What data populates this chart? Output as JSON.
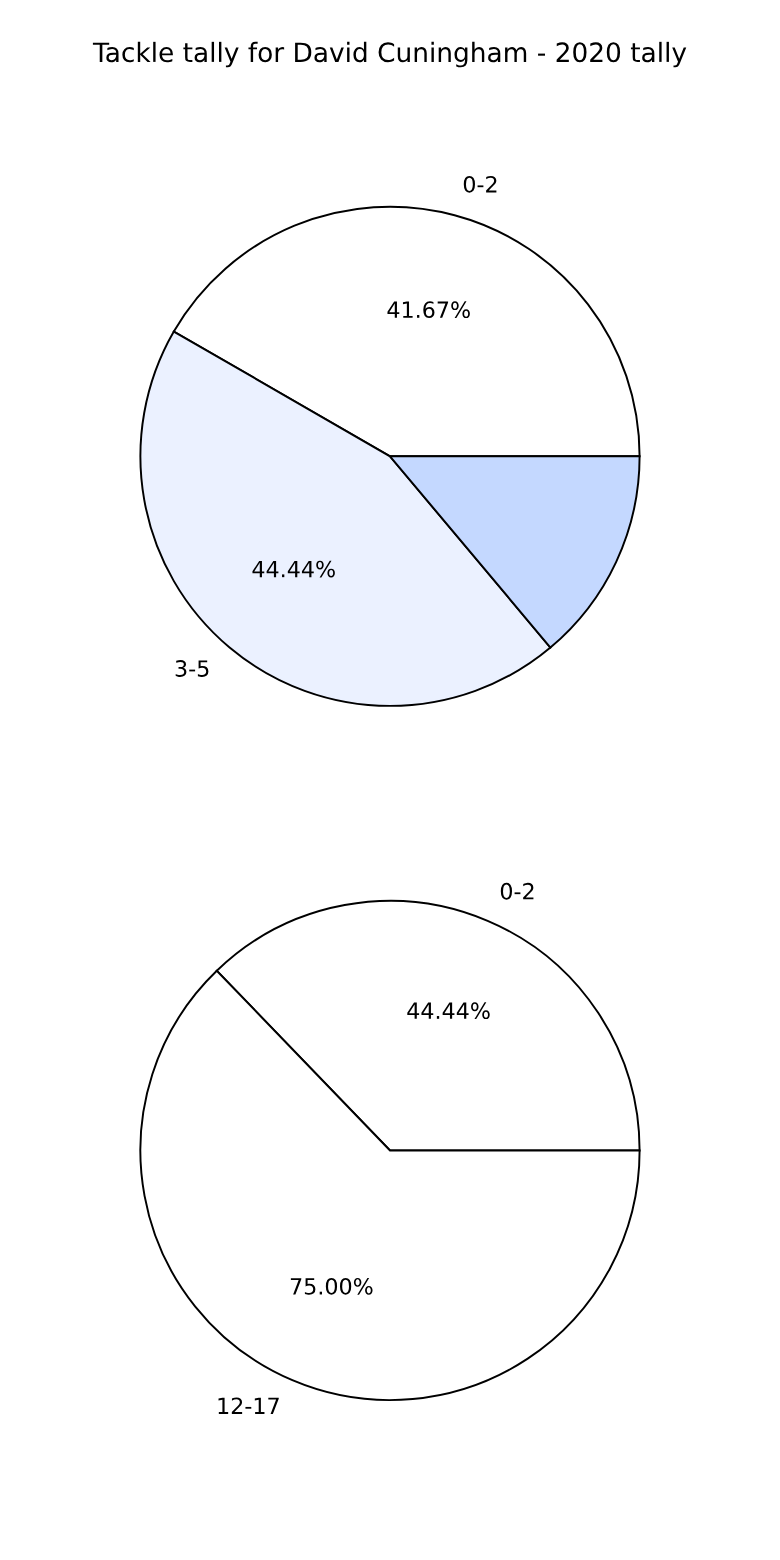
{
  "chart_data": [
    {
      "type": "pie",
      "title": "Tackle tally for David Cuningham - 2020 tally",
      "categories": [
        "0-2",
        "3-5",
        null
      ],
      "values": [
        41.67,
        44.44,
        13.89
      ],
      "value_labels": [
        "41.67%",
        "44.44%",
        null
      ],
      "colors": [
        "#ffffff",
        "#ebf1ff",
        "#c4d8ff"
      ]
    },
    {
      "type": "pie",
      "categories": [
        "0-2",
        "12-17"
      ],
      "values": [
        44.44,
        75.0
      ],
      "value_labels": [
        "44.44%",
        "75.00%"
      ],
      "colors": [
        "#ffffff",
        "#ffffff"
      ]
    }
  ]
}
